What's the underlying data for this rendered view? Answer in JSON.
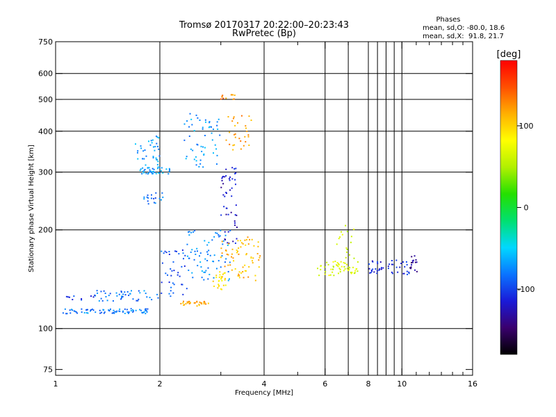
{
  "header": {
    "title_line1": "Tromsø 20170317 20:22:00–20:23:43",
    "title_line2": "RwPretec (Bp)"
  },
  "phases": {
    "heading": "Phases",
    "line1": "mean, sd,O: -80.0, 18.6",
    "line2": "mean, sd,X:  91.8, 21.7"
  },
  "chart_data": {
    "type": "scatter",
    "xlabel": "Frequency [MHz]",
    "ylabel": "Stationary phase Virtual Height [km]",
    "xscale": "log",
    "yscale": "log",
    "xlim": [
      1,
      16
    ],
    "ylim": [
      72,
      750
    ],
    "x_ticks": [
      1,
      2,
      4,
      6,
      8,
      10,
      16
    ],
    "x_ticklabels": [
      "1",
      "2",
      "4",
      "6",
      "8",
      "10",
      "16"
    ],
    "x_minor_ticks": [
      3,
      5,
      7,
      9,
      11,
      12,
      13,
      14,
      15
    ],
    "y_ticks": [
      75,
      100,
      200,
      300,
      400,
      500,
      600,
      750
    ],
    "y_ticklabels": [
      "75",
      "100",
      "200",
      "300",
      "400",
      "500",
      "600",
      "750"
    ],
    "x_gridlines": [
      2,
      4,
      6,
      8,
      10
    ],
    "y_gridlines": [
      100,
      200,
      300,
      400,
      500,
      600
    ],
    "x_extra_gridlines": [
      7,
      8.5,
      9,
      9.5
    ],
    "grid": true,
    "colorbar": {
      "label": "[deg]",
      "range": [
        -180,
        180
      ],
      "ticks": [
        100,
        0,
        -100
      ],
      "ticklabels": [
        "100",
        "0",
        "-100"
      ],
      "colors": [
        "#000000",
        "#3a006e",
        "#1a1ad8",
        "#0a74ff",
        "#00d8ff",
        "#00e070",
        "#24e000",
        "#b0f000",
        "#ffff00",
        "#ffb000",
        "#ff5000",
        "#ff0000"
      ]
    },
    "series": [
      {
        "x_range": [
          1.05,
          1.9
        ],
        "y_range": [
          111,
          115
        ],
        "phase": -80,
        "count": 75
      },
      {
        "x_range": [
          1.3,
          2.0
        ],
        "y_range": [
          121,
          131
        ],
        "phase": -80,
        "count": 45
      },
      {
        "x_range": [
          1.05,
          1.3
        ],
        "y_range": [
          122,
          127
        ],
        "phase": -105,
        "count": 10
      },
      {
        "x_range": [
          1.75,
          2.15
        ],
        "y_range": [
          296,
          310
        ],
        "phase": -70,
        "count": 40
      },
      {
        "x_range": [
          1.7,
          2.0
        ],
        "y_range": [
          310,
          390
        ],
        "phase": -70,
        "count": 35
      },
      {
        "x_range": [
          1.8,
          2.05
        ],
        "y_range": [
          240,
          260
        ],
        "phase": -85,
        "count": 18
      },
      {
        "x_range": [
          2.35,
          3.0
        ],
        "y_range": [
          310,
          460
        ],
        "phase": -70,
        "count": 55
      },
      {
        "x_range": [
          2.4,
          3.2
        ],
        "y_range": [
          140,
          200
        ],
        "phase": -75,
        "count": 70
      },
      {
        "x_range": [
          3.0,
          3.35
        ],
        "y_range": [
          180,
          310
        ],
        "phase": -120,
        "count": 50
      },
      {
        "x_range": [
          2.0,
          2.4
        ],
        "y_range": [
          125,
          175
        ],
        "phase": -95,
        "count": 40
      },
      {
        "x_range": [
          3.0,
          3.3
        ],
        "y_range": [
          500,
          525
        ],
        "phase": 130,
        "count": 12
      },
      {
        "x_range": [
          3.1,
          3.7
        ],
        "y_range": [
          350,
          450
        ],
        "phase": 120,
        "count": 30
      },
      {
        "x_range": [
          3.0,
          3.9
        ],
        "y_range": [
          140,
          190
        ],
        "phase": 110,
        "count": 70
      },
      {
        "x_range": [
          2.85,
          3.15
        ],
        "y_range": [
          131,
          150
        ],
        "phase": 90,
        "count": 25
      },
      {
        "x_range": [
          2.3,
          2.8
        ],
        "y_range": [
          117,
          121
        ],
        "phase": 115,
        "count": 30
      },
      {
        "x_range": [
          5.7,
          7.5
        ],
        "y_range": [
          145,
          160
        ],
        "phase": 70,
        "count": 45
      },
      {
        "x_range": [
          6.3,
          7.3
        ],
        "y_range": [
          150,
          210
        ],
        "phase": 60,
        "count": 25
      },
      {
        "x_range": [
          8.0,
          10.5
        ],
        "y_range": [
          146,
          162
        ],
        "phase": -110,
        "count": 45
      },
      {
        "x_range": [
          10.3,
          11.2
        ],
        "y_range": [
          148,
          168
        ],
        "phase": -140,
        "count": 15
      }
    ]
  }
}
